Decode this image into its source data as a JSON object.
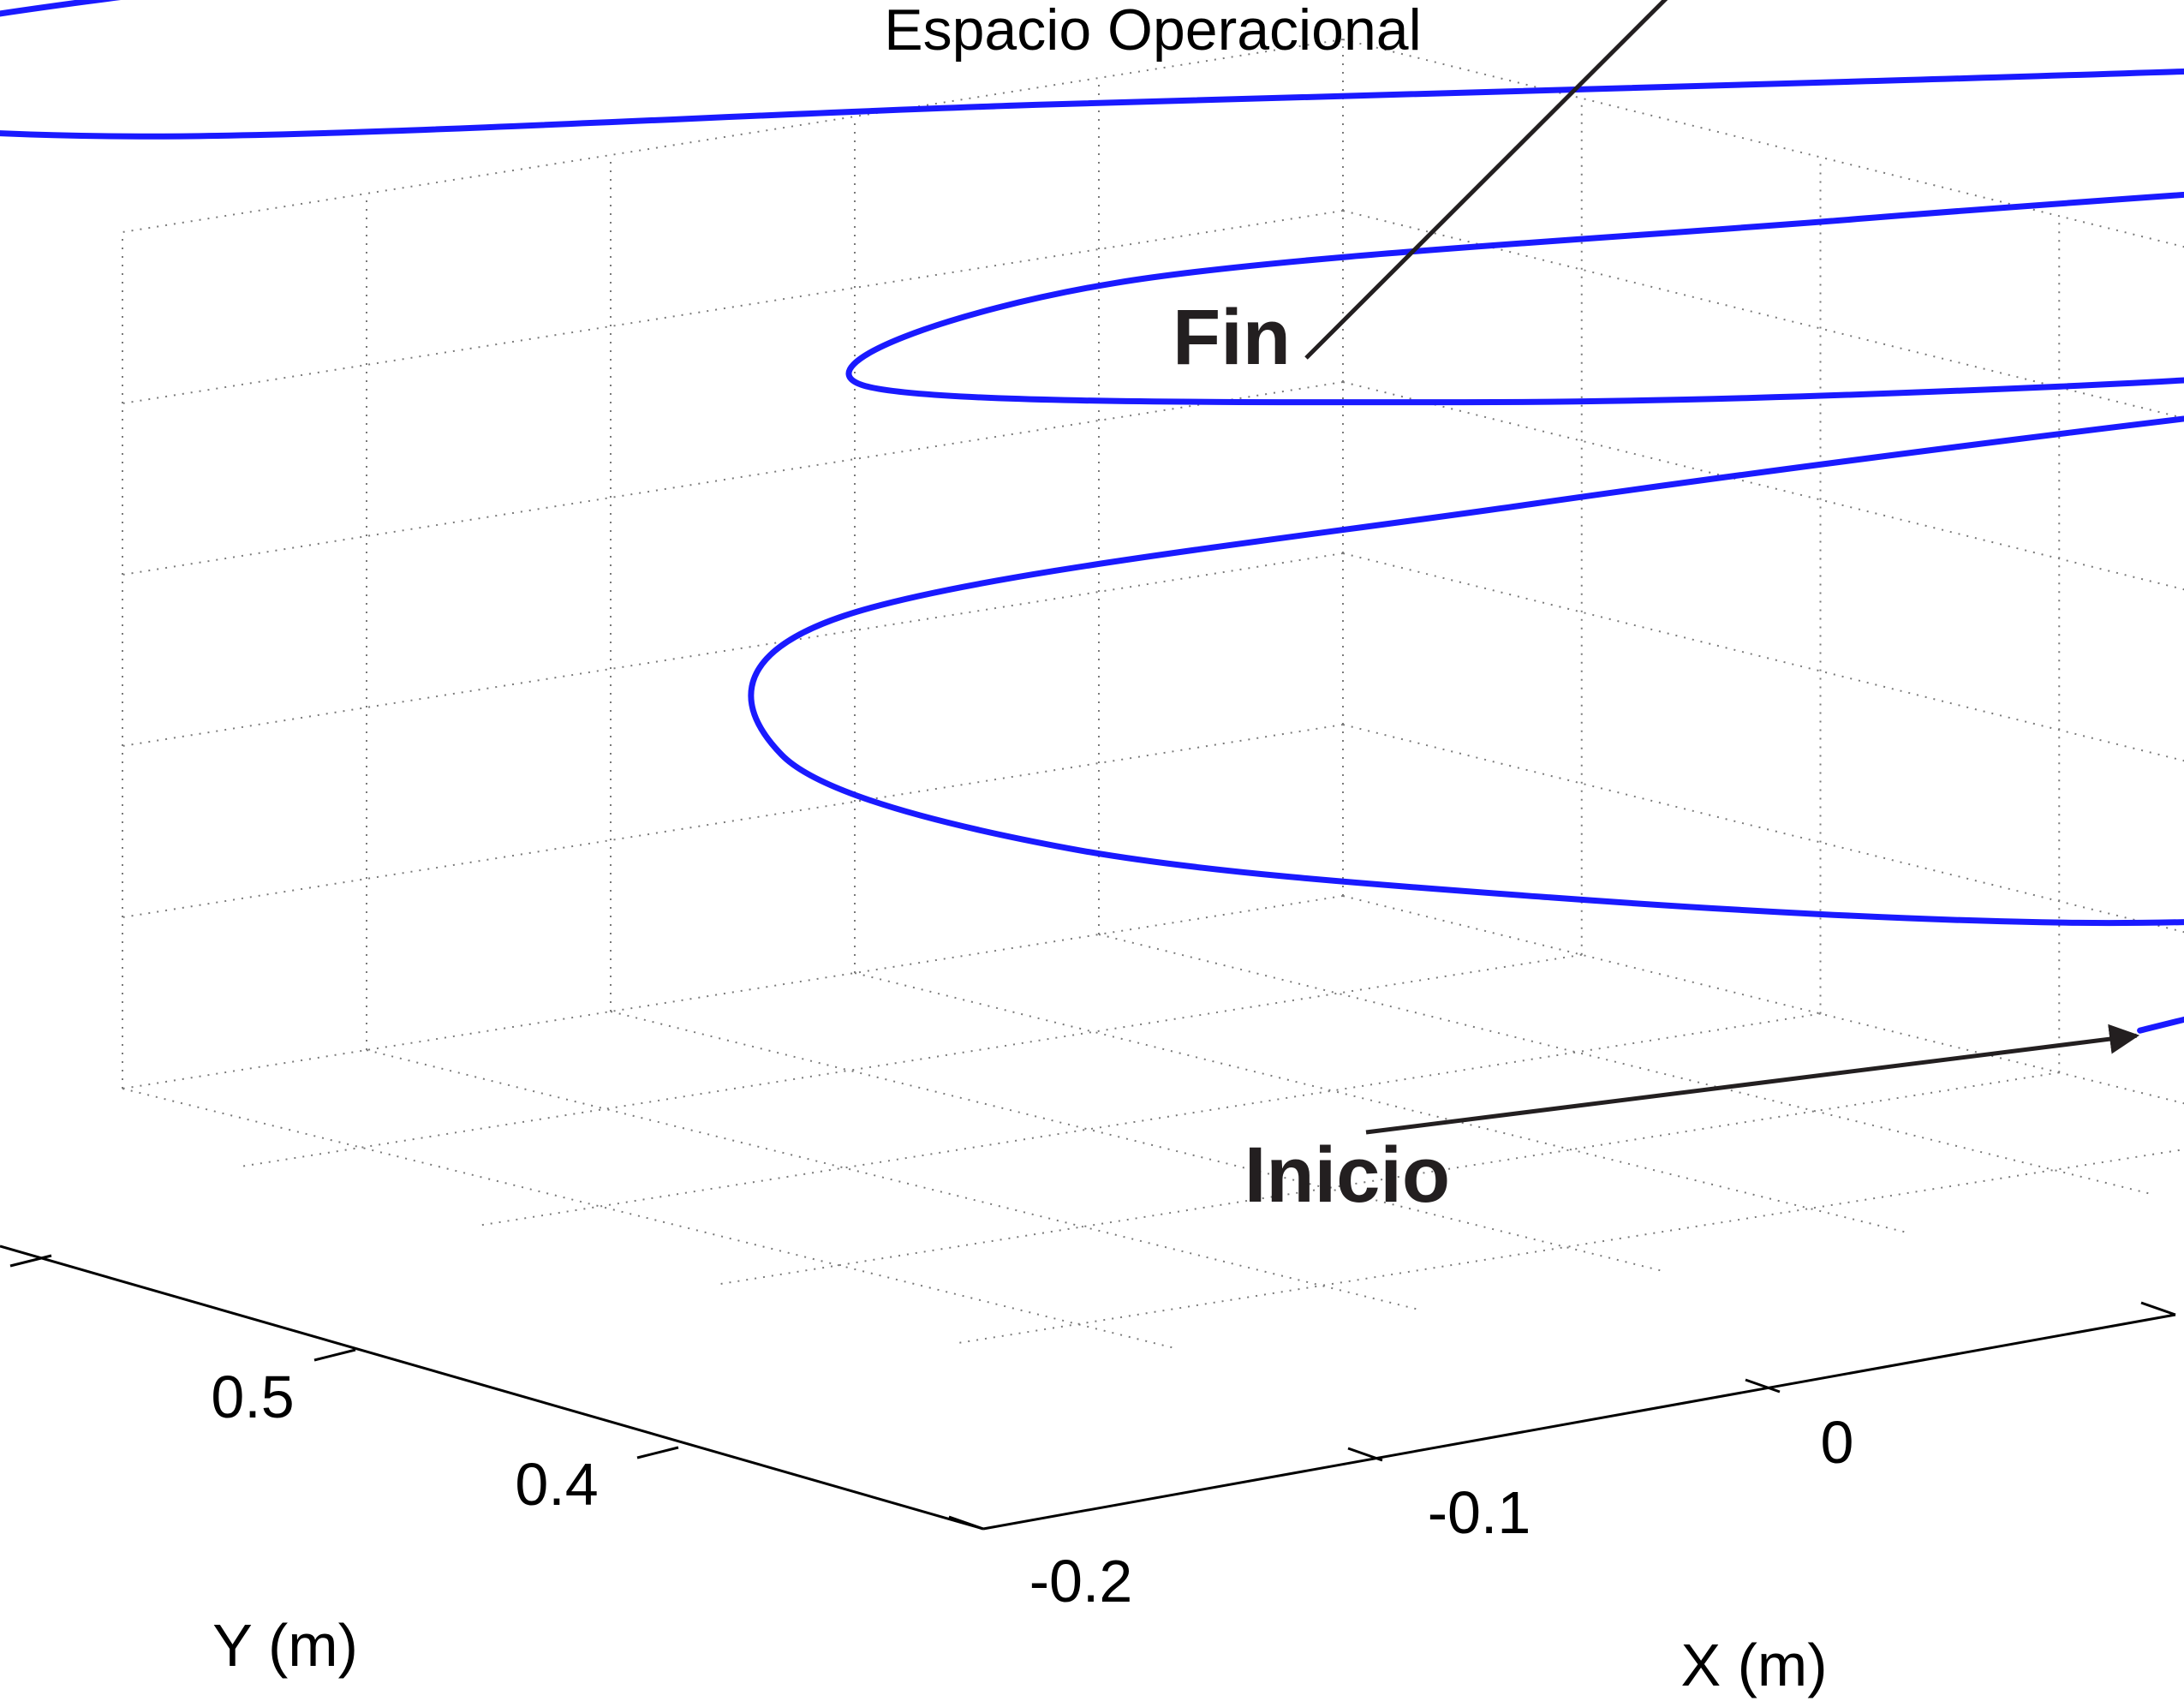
{
  "chart_data": {
    "type": "line",
    "dimensions": "3d",
    "title": "Espacio Operacional",
    "xlabel": "X (m)",
    "ylabel": "Y (m)",
    "zlabel": "",
    "xticks": [
      "-0.2",
      "-0.1",
      "0"
    ],
    "yticks": [
      "0.4",
      "0.5"
    ],
    "grid": true,
    "series": [
      {
        "color": "#1a1aff",
        "points": [
          [
            -0.04,
            0.32,
            0.0
          ],
          [
            0.02,
            0.3,
            0.02
          ],
          [
            0.05,
            0.28,
            0.04
          ],
          [
            0.01,
            0.27,
            0.05
          ],
          [
            -0.08,
            0.29,
            0.06
          ],
          [
            -0.18,
            0.33,
            0.08
          ],
          [
            -0.26,
            0.38,
            0.1
          ],
          [
            -0.3,
            0.42,
            0.13
          ],
          [
            -0.26,
            0.45,
            0.16
          ],
          [
            -0.12,
            0.41,
            0.18
          ],
          [
            0.04,
            0.35,
            0.2
          ],
          [
            0.14,
            0.3,
            0.21
          ],
          [
            0.16,
            0.28,
            0.22
          ],
          [
            0.08,
            0.29,
            0.23
          ],
          [
            -0.06,
            0.32,
            0.24
          ],
          [
            -0.18,
            0.36,
            0.25
          ],
          [
            -0.28,
            0.42,
            0.26
          ],
          [
            -0.2,
            0.44,
            0.27
          ],
          [
            -0.06,
            0.38,
            0.28
          ],
          [
            0.06,
            0.32,
            0.29
          ],
          [
            0.14,
            0.29,
            0.3
          ],
          [
            0.15,
            0.3,
            0.31
          ],
          [
            0.08,
            0.33,
            0.32
          ],
          [
            -0.06,
            0.38,
            0.33
          ],
          [
            -0.22,
            0.44,
            0.34
          ],
          [
            -0.38,
            0.52,
            0.34
          ],
          [
            -0.44,
            0.57,
            0.35
          ],
          [
            -0.4,
            0.58,
            0.36
          ],
          [
            -0.3,
            0.55,
            0.37
          ],
          [
            -0.2,
            0.49,
            0.38
          ],
          [
            -0.1,
            0.44,
            0.39
          ],
          [
            -0.04,
            0.4,
            0.41
          ],
          [
            -0.03,
            0.39,
            0.43
          ],
          [
            -0.02,
            0.38,
            0.45
          ],
          [
            -0.04,
            0.37,
            0.47
          ]
        ]
      }
    ],
    "annotations": [
      {
        "text": "Fin",
        "target": "end"
      },
      {
        "text": "Inicio",
        "target": "start"
      }
    ]
  }
}
